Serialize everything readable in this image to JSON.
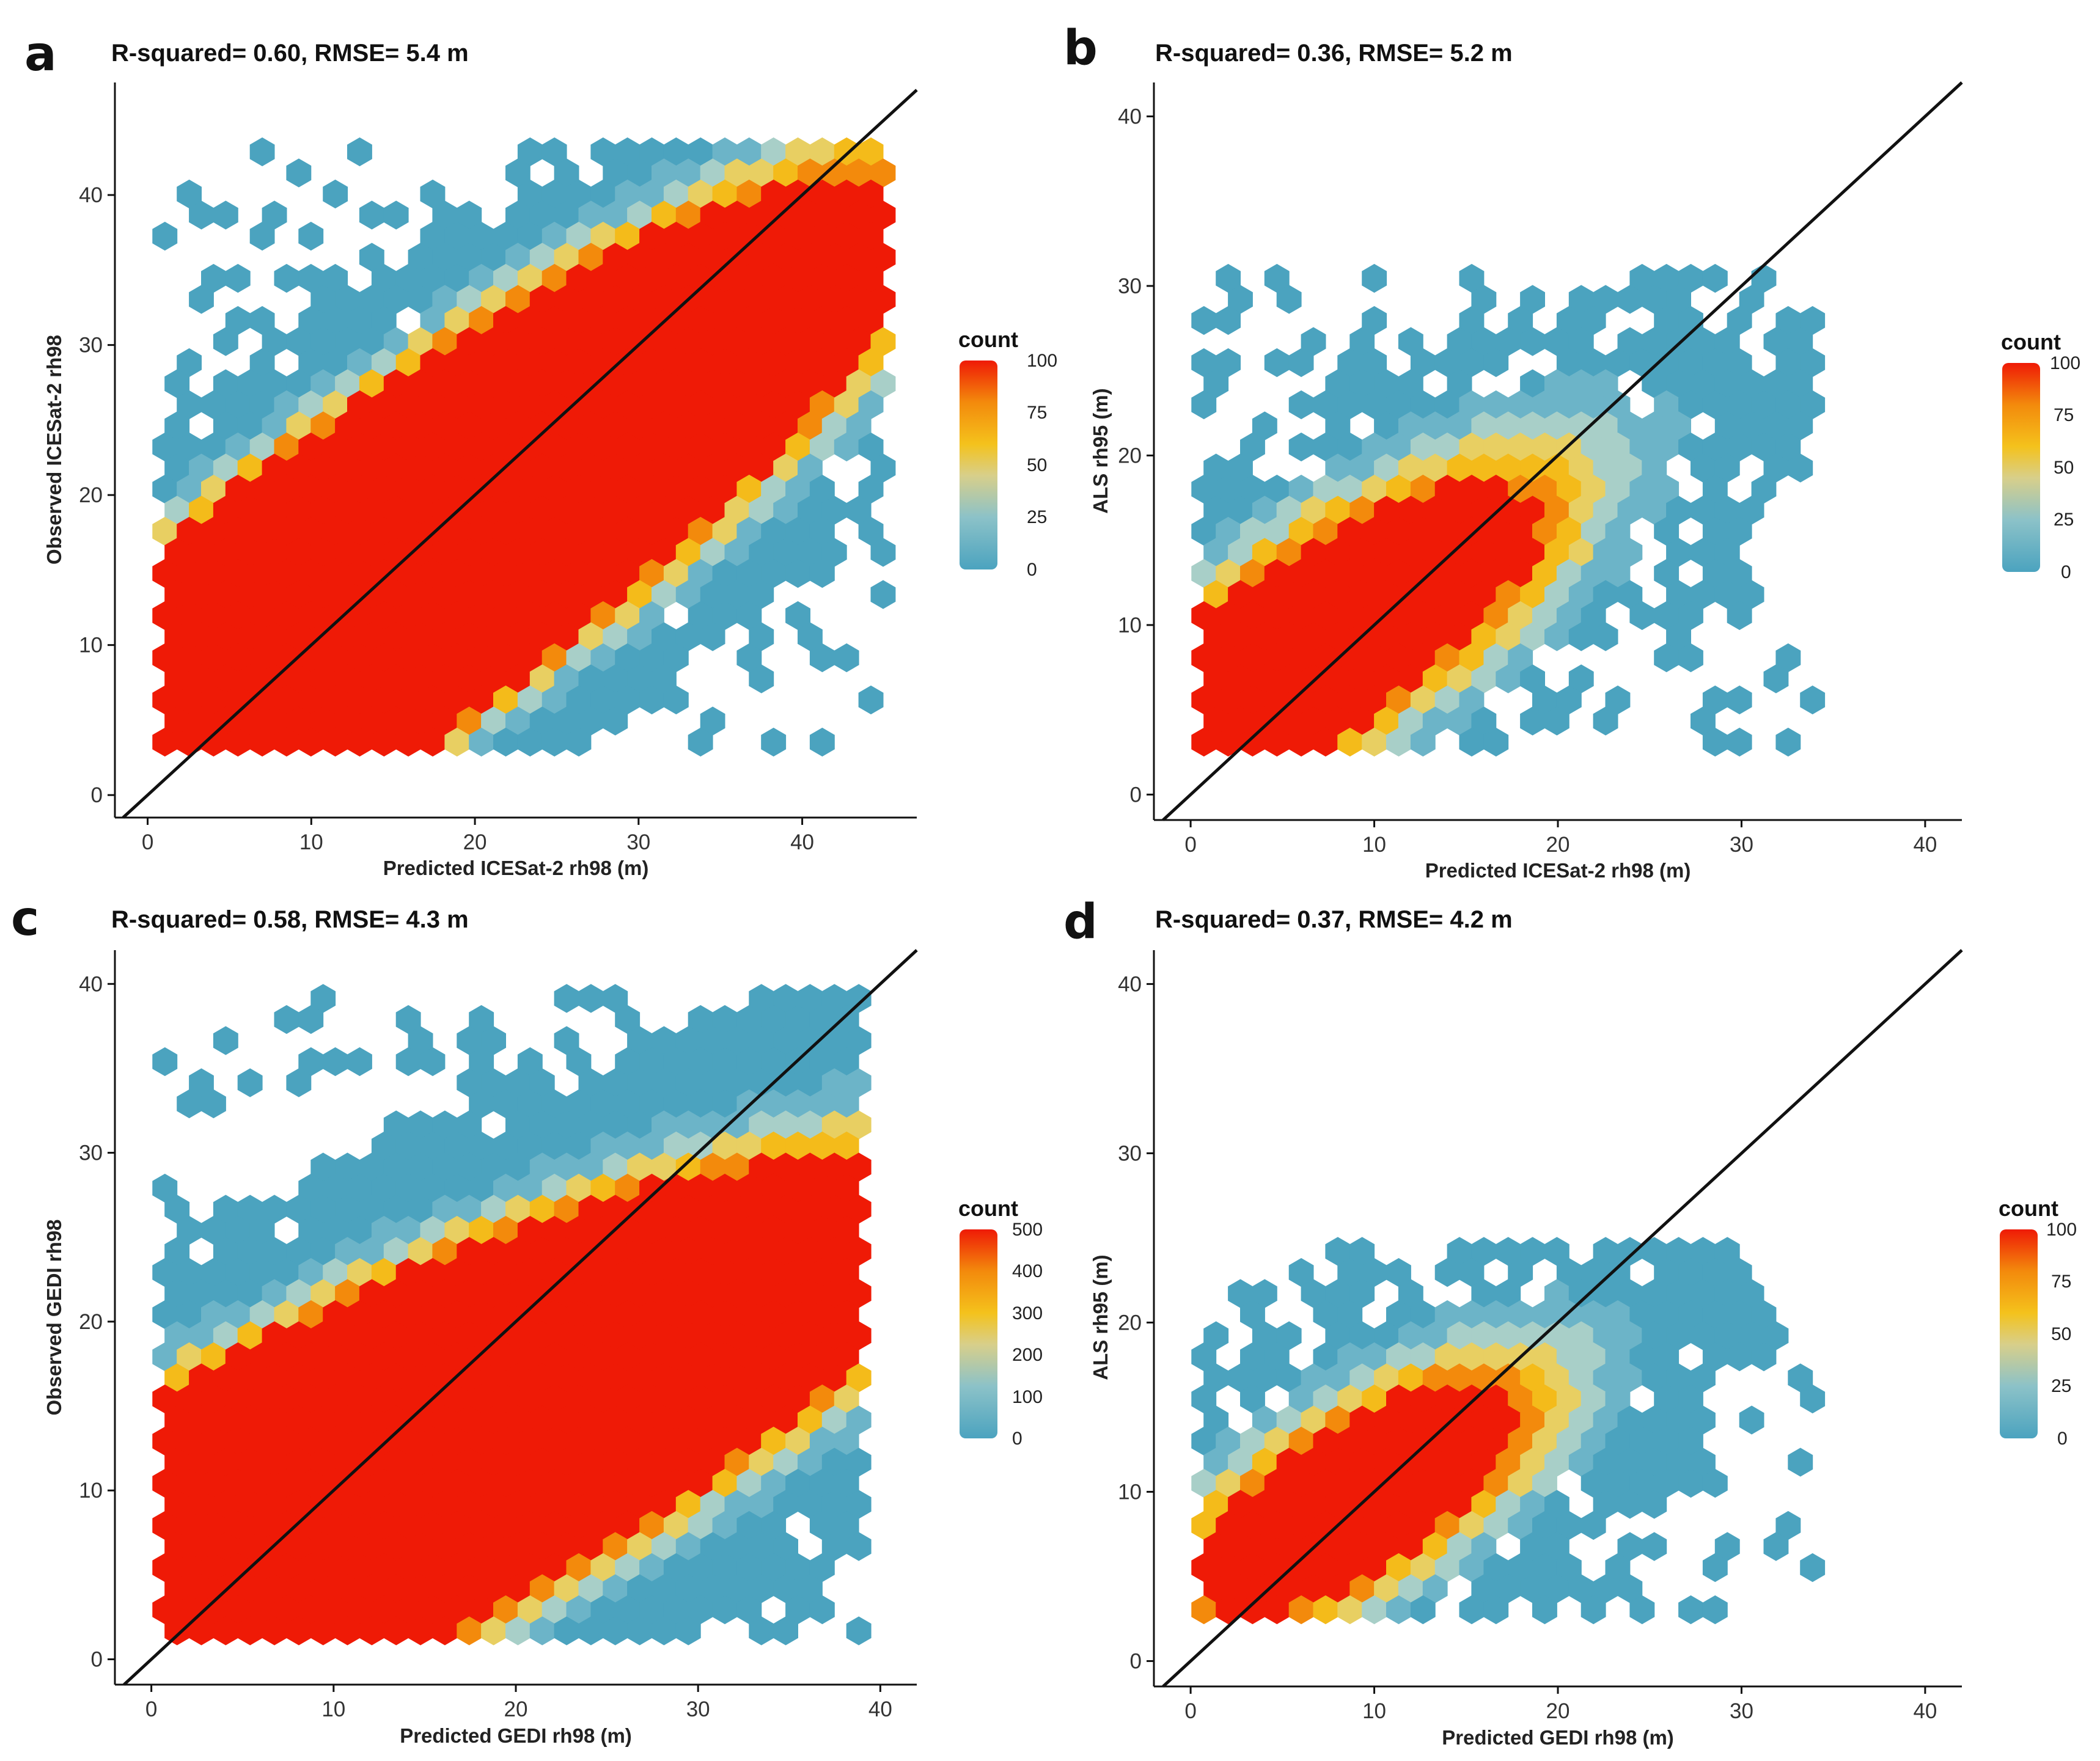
{
  "figure": {
    "description_labels": [
      "a",
      "b",
      "c",
      "d"
    ]
  },
  "colors": {
    "scale": [
      "#4ba3bf",
      "#6cb4c8",
      "#a8cfc8",
      "#e8cf62",
      "#f4bb1a",
      "#f38a0c",
      "#ef1a06"
    ],
    "axis": "#111111",
    "ref_line": "#111111"
  },
  "chart_data": [
    {
      "panel": "a",
      "type": "hexbin",
      "title": "R-squared= 0.60, RMSE= 5.4 m",
      "xlabel": "Predicted ICESat-2 rh98 (m)",
      "ylabel": "Observed ICESat-2 rh98",
      "xlim": [
        -2,
        47
      ],
      "ylim": [
        -1.5,
        47.5
      ],
      "xticks": [
        0,
        10,
        20,
        30,
        40
      ],
      "yticks": [
        0,
        10,
        20,
        30,
        40
      ],
      "reference_line": "1:1",
      "legend": {
        "title": "count",
        "ticks": [
          0,
          25,
          50,
          75,
          100
        ],
        "max": 100
      },
      "density": {
        "peak": 1800,
        "sigma_major": 17.0,
        "sigma_minor": 4.2,
        "center": [
          14,
          14
        ],
        "slope": 0.8,
        "x_range": [
          1,
          45
        ],
        "y_range": [
          3,
          44
        ],
        "noise": 0.1
      }
    },
    {
      "panel": "b",
      "type": "hexbin",
      "title": "R-squared= 0.36, RMSE= 5.2 m",
      "xlabel": "Predicted ICESat-2 rh98 (m)",
      "ylabel": "ALS rh95 (m)",
      "xlim": [
        -2,
        42
      ],
      "ylim": [
        -1.5,
        42
      ],
      "xticks": [
        0,
        10,
        20,
        30,
        40
      ],
      "yticks": [
        0,
        10,
        20,
        30,
        40
      ],
      "reference_line": "1:1",
      "legend": {
        "title": "count",
        "ticks": [
          0,
          25,
          50,
          75,
          100
        ],
        "max": 100
      },
      "density": {
        "peak": 240,
        "sigma_major": 10.0,
        "sigma_minor": 3.6,
        "center": [
          7,
          9
        ],
        "slope": 0.72,
        "x_range": [
          0.5,
          34
        ],
        "y_range": [
          2.5,
          31
        ],
        "noise": 0.25
      }
    },
    {
      "panel": "c",
      "type": "hexbin",
      "title": "R-squared= 0.58, RMSE= 4.3 m",
      "xlabel": "Predicted GEDI rh98 (m)",
      "ylabel": "Observed GEDI rh98",
      "xlim": [
        -2,
        42
      ],
      "ylim": [
        -1.5,
        42
      ],
      "xticks": [
        0,
        10,
        20,
        30,
        40
      ],
      "yticks": [
        0,
        10,
        20,
        30,
        40
      ],
      "reference_line": "1:1",
      "legend": {
        "title": "count",
        "ticks": [
          0,
          100,
          200,
          300,
          400,
          500
        ],
        "max": 500
      },
      "density": {
        "peak": 8000,
        "sigma_major": 15.0,
        "sigma_minor": 4.2,
        "center": [
          11,
          10
        ],
        "slope": 0.55,
        "x_range": [
          0.5,
          39
        ],
        "y_range": [
          1.5,
          39.5
        ],
        "noise": 0.1
      }
    },
    {
      "panel": "d",
      "type": "hexbin",
      "title": "R-squared= 0.37, RMSE= 4.2 m",
      "xlabel": "Predicted GEDI rh98 (m)",
      "ylabel": "ALS rh95 (m)",
      "xlim": [
        -2,
        42
      ],
      "ylim": [
        -1.5,
        42
      ],
      "xticks": [
        0,
        10,
        20,
        30,
        40
      ],
      "yticks": [
        0,
        10,
        20,
        30,
        40
      ],
      "reference_line": "1:1",
      "legend": {
        "title": "count",
        "ticks": [
          0,
          25,
          50,
          75,
          100
        ],
        "max": 100
      },
      "density": {
        "peak": 200,
        "sigma_major": 8.0,
        "sigma_minor": 3.2,
        "center": [
          9,
          9.5
        ],
        "slope": 0.72,
        "x_range": [
          0.5,
          34
        ],
        "y_range": [
          2.5,
          25
        ],
        "noise": 0.25
      }
    }
  ]
}
